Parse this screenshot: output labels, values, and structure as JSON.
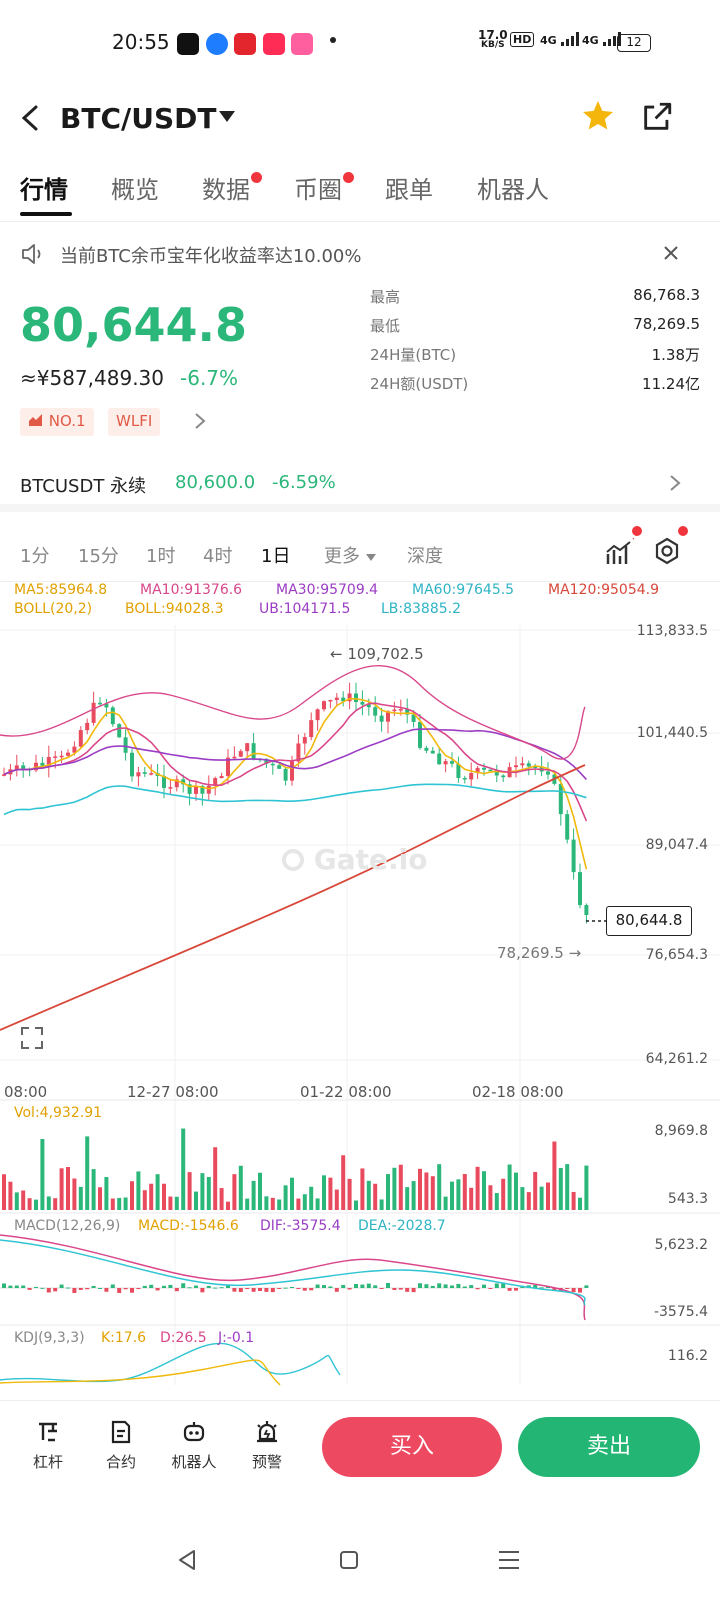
{
  "status_bar": {
    "time": "20:55",
    "net_speed": "17.0",
    "net_unit": "KB/S",
    "hd": "HD",
    "signal1": "4G",
    "signal2": "4G",
    "battery": "12"
  },
  "header": {
    "pair": "BTC/USDT"
  },
  "tabs": [
    {
      "label": "行情",
      "active": true,
      "dot": false
    },
    {
      "label": "概览",
      "active": false,
      "dot": false
    },
    {
      "label": "数据",
      "active": false,
      "dot": true
    },
    {
      "label": "币圈",
      "active": false,
      "dot": true
    },
    {
      "label": "跟单",
      "active": false,
      "dot": false
    },
    {
      "label": "机器人",
      "active": false,
      "dot": false
    }
  ],
  "notice": {
    "text": "当前BTC余币宝年化收益率达10.00%"
  },
  "price": {
    "last": "80,644.8",
    "cny": "≈¥587,489.30",
    "change_pct": "-6.7%"
  },
  "stats": [
    {
      "label": "最高",
      "value": "86,768.3"
    },
    {
      "label": "最低",
      "value": "78,269.5"
    },
    {
      "label": "24H量(BTC)",
      "value": "1.38万"
    },
    {
      "label": "24H额(USDT)",
      "value": "11.24亿"
    }
  ],
  "chips": {
    "rank": "NO.1",
    "tag": "WLFI"
  },
  "perpetual": {
    "name": "BTCUSDT 永续",
    "price": "80,600.0",
    "change": "-6.59%"
  },
  "intervals": [
    {
      "label": "1分",
      "active": false
    },
    {
      "label": "15分",
      "active": false
    },
    {
      "label": "1时",
      "active": false
    },
    {
      "label": "4时",
      "active": false
    },
    {
      "label": "1日",
      "active": true
    },
    {
      "label": "更多",
      "active": false
    },
    {
      "label": "深度",
      "active": false
    }
  ],
  "chart_data": {
    "type": "candlestick",
    "ma_legend": {
      "ma5": "MA5:85964.8",
      "ma10": "MA10:91376.6",
      "ma30": "MA30:95709.4",
      "ma60": "MA60:97645.5",
      "ma120": "MA120:95054.9",
      "boll": "BOLL(20,2)",
      "boll_val": "BOLL:94028.3",
      "ub": "UB:104171.5",
      "lb": "LB:83885.2"
    },
    "y_ticks": [
      "113,833.5",
      "101,440.5",
      "89,047.4",
      "76,654.3",
      "64,261.2"
    ],
    "x_ticks": [
      "08:00",
      "12-27 08:00",
      "01-22 08:00",
      "02-18 08:00"
    ],
    "high_marker": "← 109,702.5",
    "low_marker": "78,269.5 →",
    "last_price_tag": "80,644.8",
    "watermark": "Gate.io",
    "volume": {
      "legend": "Vol:4,932.91",
      "max": "8,969.8",
      "min": "543.3"
    },
    "macd": {
      "legend": "MACD(12,26,9)",
      "macd": "MACD:-1546.6",
      "dif": "DIF:-3575.4",
      "dea": "DEA:-2028.7",
      "max": "5,623.2",
      "min": "-3575.4"
    },
    "kdj": {
      "legend": "KDJ(9,3,3)",
      "k": "K:17.6",
      "d": "D:26.5",
      "j": "J:-0.1",
      "max": "116.2"
    },
    "colors": {
      "up": "#e84b5e",
      "down": "#2bb77a",
      "ma5": "#f0b90b",
      "ma10": "#d9478a",
      "ma30": "#9b3dc4",
      "ma60": "#2fc4d4",
      "ma120": "#d8473a"
    }
  },
  "bottom_bar": {
    "items": [
      "杠杆",
      "合约",
      "机器人",
      "预警"
    ],
    "buy": "买入",
    "sell": "卖出"
  }
}
